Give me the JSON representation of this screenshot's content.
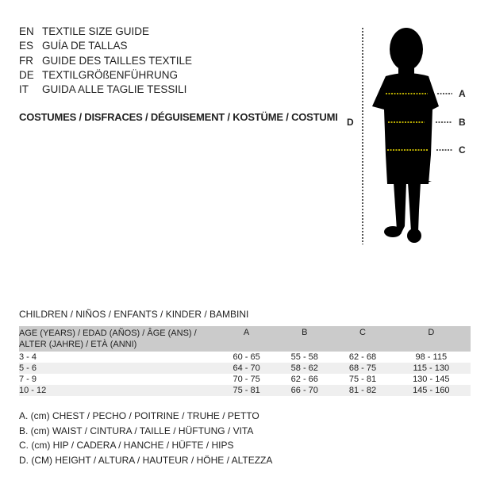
{
  "languages": [
    {
      "code": "EN",
      "title": "TEXTILE SIZE GUIDE"
    },
    {
      "code": "ES",
      "title": "GUÍA DE TALLAS"
    },
    {
      "code": "FR",
      "title": "GUIDE DES TAILLES TEXTILE"
    },
    {
      "code": "DE",
      "title": "TEXTILGRÖßENFÜHRUNG"
    },
    {
      "code": "IT",
      "title": "GUIDA ALLE TAGLIE TESSILI"
    }
  ],
  "category": "COSTUMES / DISFRACES / DÉGUISEMENT / KOSTÜME / COSTUMI",
  "figure": {
    "labels": {
      "a": "A",
      "b": "B",
      "c": "C",
      "d": "D"
    },
    "guide_color": "#f5e400"
  },
  "group": "CHILDREN / NIÑOS / ENFANTS / KINDER / BAMBINI",
  "table": {
    "headers": [
      "AGE (YEARS) / EDAD (AÑOS) / ÂGE (ANS) / ALTER (JAHRE) / ETÀ (ANNI)",
      "A",
      "B",
      "C",
      "D"
    ],
    "rows": [
      [
        "3 - 4",
        "60 - 65",
        "55 - 58",
        "62 - 68",
        "98 - 115"
      ],
      [
        "5 - 6",
        "64 - 70",
        "58 - 62",
        "68 - 75",
        "115 - 130"
      ],
      [
        "7 - 9",
        "70 - 75",
        "62 - 66",
        "75 - 81",
        "130 - 145"
      ],
      [
        "10 - 12",
        "75 - 81",
        "66 - 70",
        "81 - 82",
        "145 - 160"
      ]
    ]
  },
  "legend": [
    "A. (cm) CHEST / PECHO / POITRINE / TRUHE / PETTO",
    "B. (cm) WAIST / CINTURA / TAILLE / HÜFTUNG / VITA",
    "C. (cm) HIP / CADERA / HANCHE / HÜFTE / HIPS",
    "D. (CM) HEIGHT / ALTURA / HAUTEUR / HÖHE / ALTEZZA"
  ]
}
